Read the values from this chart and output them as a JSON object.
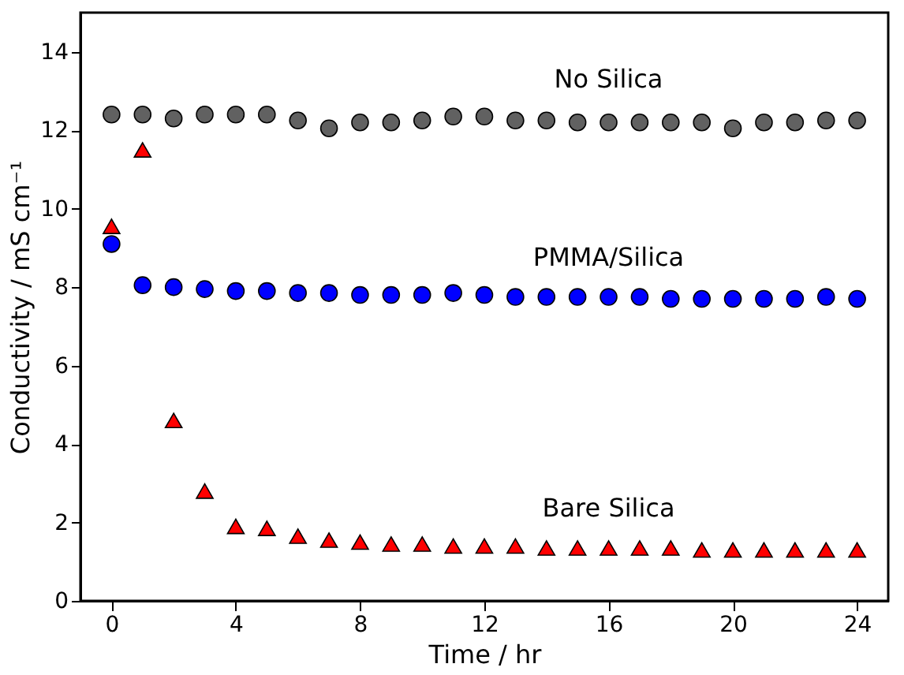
{
  "chart_data": {
    "type": "scatter",
    "xlabel": "Time / hr",
    "ylabel": "Conductivity / mS cm⁻¹",
    "x": [
      0,
      1,
      2,
      3,
      4,
      5,
      6,
      7,
      8,
      9,
      10,
      11,
      12,
      13,
      14,
      15,
      16,
      17,
      18,
      19,
      20,
      21,
      22,
      23,
      24
    ],
    "series": [
      {
        "name": "No Silica",
        "color": "#616161",
        "marker": "circle",
        "values": [
          12.4,
          12.4,
          12.3,
          12.4,
          12.4,
          12.4,
          12.25,
          12.05,
          12.2,
          12.2,
          12.25,
          12.35,
          12.35,
          12.25,
          12.25,
          12.2,
          12.2,
          12.2,
          12.2,
          12.2,
          12.05,
          12.2,
          12.2,
          12.25,
          12.25
        ]
      },
      {
        "name": "PMMA/Silica",
        "color": "#0000ff",
        "marker": "circle",
        "values": [
          9.1,
          8.05,
          8.0,
          7.95,
          7.9,
          7.9,
          7.85,
          7.85,
          7.8,
          7.8,
          7.8,
          7.85,
          7.8,
          7.75,
          7.75,
          7.75,
          7.75,
          7.75,
          7.7,
          7.7,
          7.7,
          7.7,
          7.7,
          7.75,
          7.7
        ]
      },
      {
        "name": "Bare Silica",
        "color": "#ff0000",
        "marker": "triangle",
        "values": [
          9.55,
          11.5,
          4.6,
          2.8,
          1.9,
          1.85,
          1.65,
          1.55,
          1.5,
          1.45,
          1.45,
          1.4,
          1.4,
          1.4,
          1.35,
          1.35,
          1.35,
          1.35,
          1.35,
          1.3,
          1.3,
          1.3,
          1.3,
          1.3,
          1.3
        ]
      }
    ],
    "xlim": [
      -1,
      25
    ],
    "xticks": [
      0,
      4,
      8,
      12,
      16,
      20,
      24
    ],
    "ylim": [
      0,
      15
    ],
    "yticks": [
      0,
      2,
      4,
      6,
      8,
      10,
      12,
      14
    ],
    "grid": false
  }
}
